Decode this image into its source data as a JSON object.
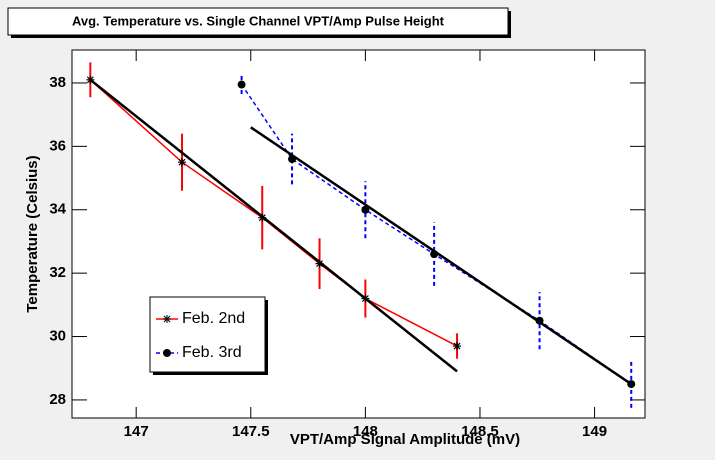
{
  "chart_data": {
    "type": "line",
    "title": "Avg. Temperature vs. Single Channel VPT/Amp Pulse Height",
    "xlabel": "VPT/Amp Signal Amplitude (mV)",
    "ylabel": "Temperature (Celsius)",
    "xlim": [
      146.72,
      149.22
    ],
    "ylim": [
      27.43,
      39.04
    ],
    "xticks": [
      147,
      147.5,
      148,
      148.5,
      149
    ],
    "yticks": [
      28,
      30,
      32,
      34,
      36,
      38
    ],
    "legend": "lower-left",
    "series": [
      {
        "name": "Feb. 2nd",
        "color": "#ff0000",
        "marker": "star",
        "dashed": false,
        "x": [
          146.8,
          147.2,
          147.55,
          147.8,
          148.0,
          148.4
        ],
        "values": [
          38.1,
          35.5,
          33.75,
          32.3,
          31.2,
          29.7
        ],
        "errors": [
          0.55,
          0.9,
          1.0,
          0.8,
          0.6,
          0.4
        ]
      },
      {
        "name": "Feb. 3rd",
        "color": "#0000ff",
        "marker": "circle",
        "dashed": true,
        "x": [
          147.46,
          147.68,
          148.0,
          148.3,
          148.76,
          149.16
        ],
        "values": [
          37.95,
          35.6,
          34.0,
          32.6,
          30.5,
          28.5
        ],
        "errors": [
          0.3,
          0.8,
          0.9,
          1.0,
          0.9,
          0.75
        ]
      }
    ],
    "fit_lines": [
      {
        "color": "#000000",
        "x": [
          146.8,
          148.4
        ],
        "values": [
          38.1,
          28.9
        ]
      },
      {
        "color": "#000000",
        "x": [
          147.5,
          149.16
        ],
        "values": [
          36.6,
          28.5
        ]
      }
    ]
  }
}
